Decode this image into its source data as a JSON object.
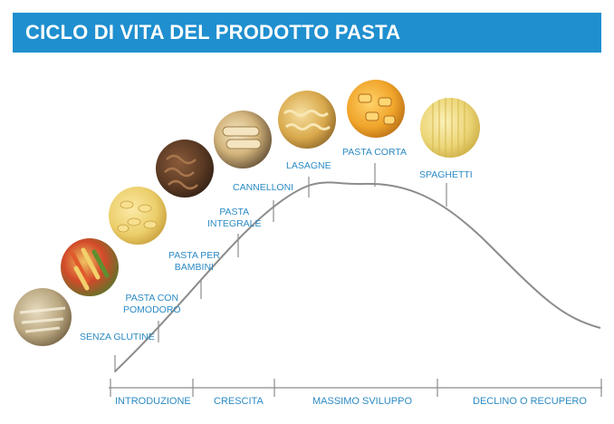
{
  "title": "CICLO DI VITA DEL PRODOTTO PASTA",
  "colors": {
    "banner": "#1f8fcf",
    "text": "#2b8ac5",
    "curve": "#8c8c8c"
  },
  "products": [
    {
      "label": "SENZA GLUTINE",
      "image": "glutenfree-pasta-photo"
    },
    {
      "label": "PASTA CON\nPOMODORO",
      "image": "tricolor-pasta-photo"
    },
    {
      "label": "PASTA PER\nBAMBINI",
      "image": "farfalline-pasta-photo"
    },
    {
      "label": "PASTA\nINTEGRALE",
      "image": "wholewheat-pasta-photo"
    },
    {
      "label": "CANNELLONI",
      "image": "cannelloni-photo"
    },
    {
      "label": "LASAGNE",
      "image": "lasagne-photo"
    },
    {
      "label": "PASTA CORTA",
      "image": "short-pasta-photo"
    },
    {
      "label": "SPAGHETTI",
      "image": "spaghetti-photo"
    }
  ],
  "phases": [
    "INTRODUZIONE",
    "CRESCITA",
    "MASSIMO SVILUPPO",
    "DECLINO O RECUPERO"
  ]
}
